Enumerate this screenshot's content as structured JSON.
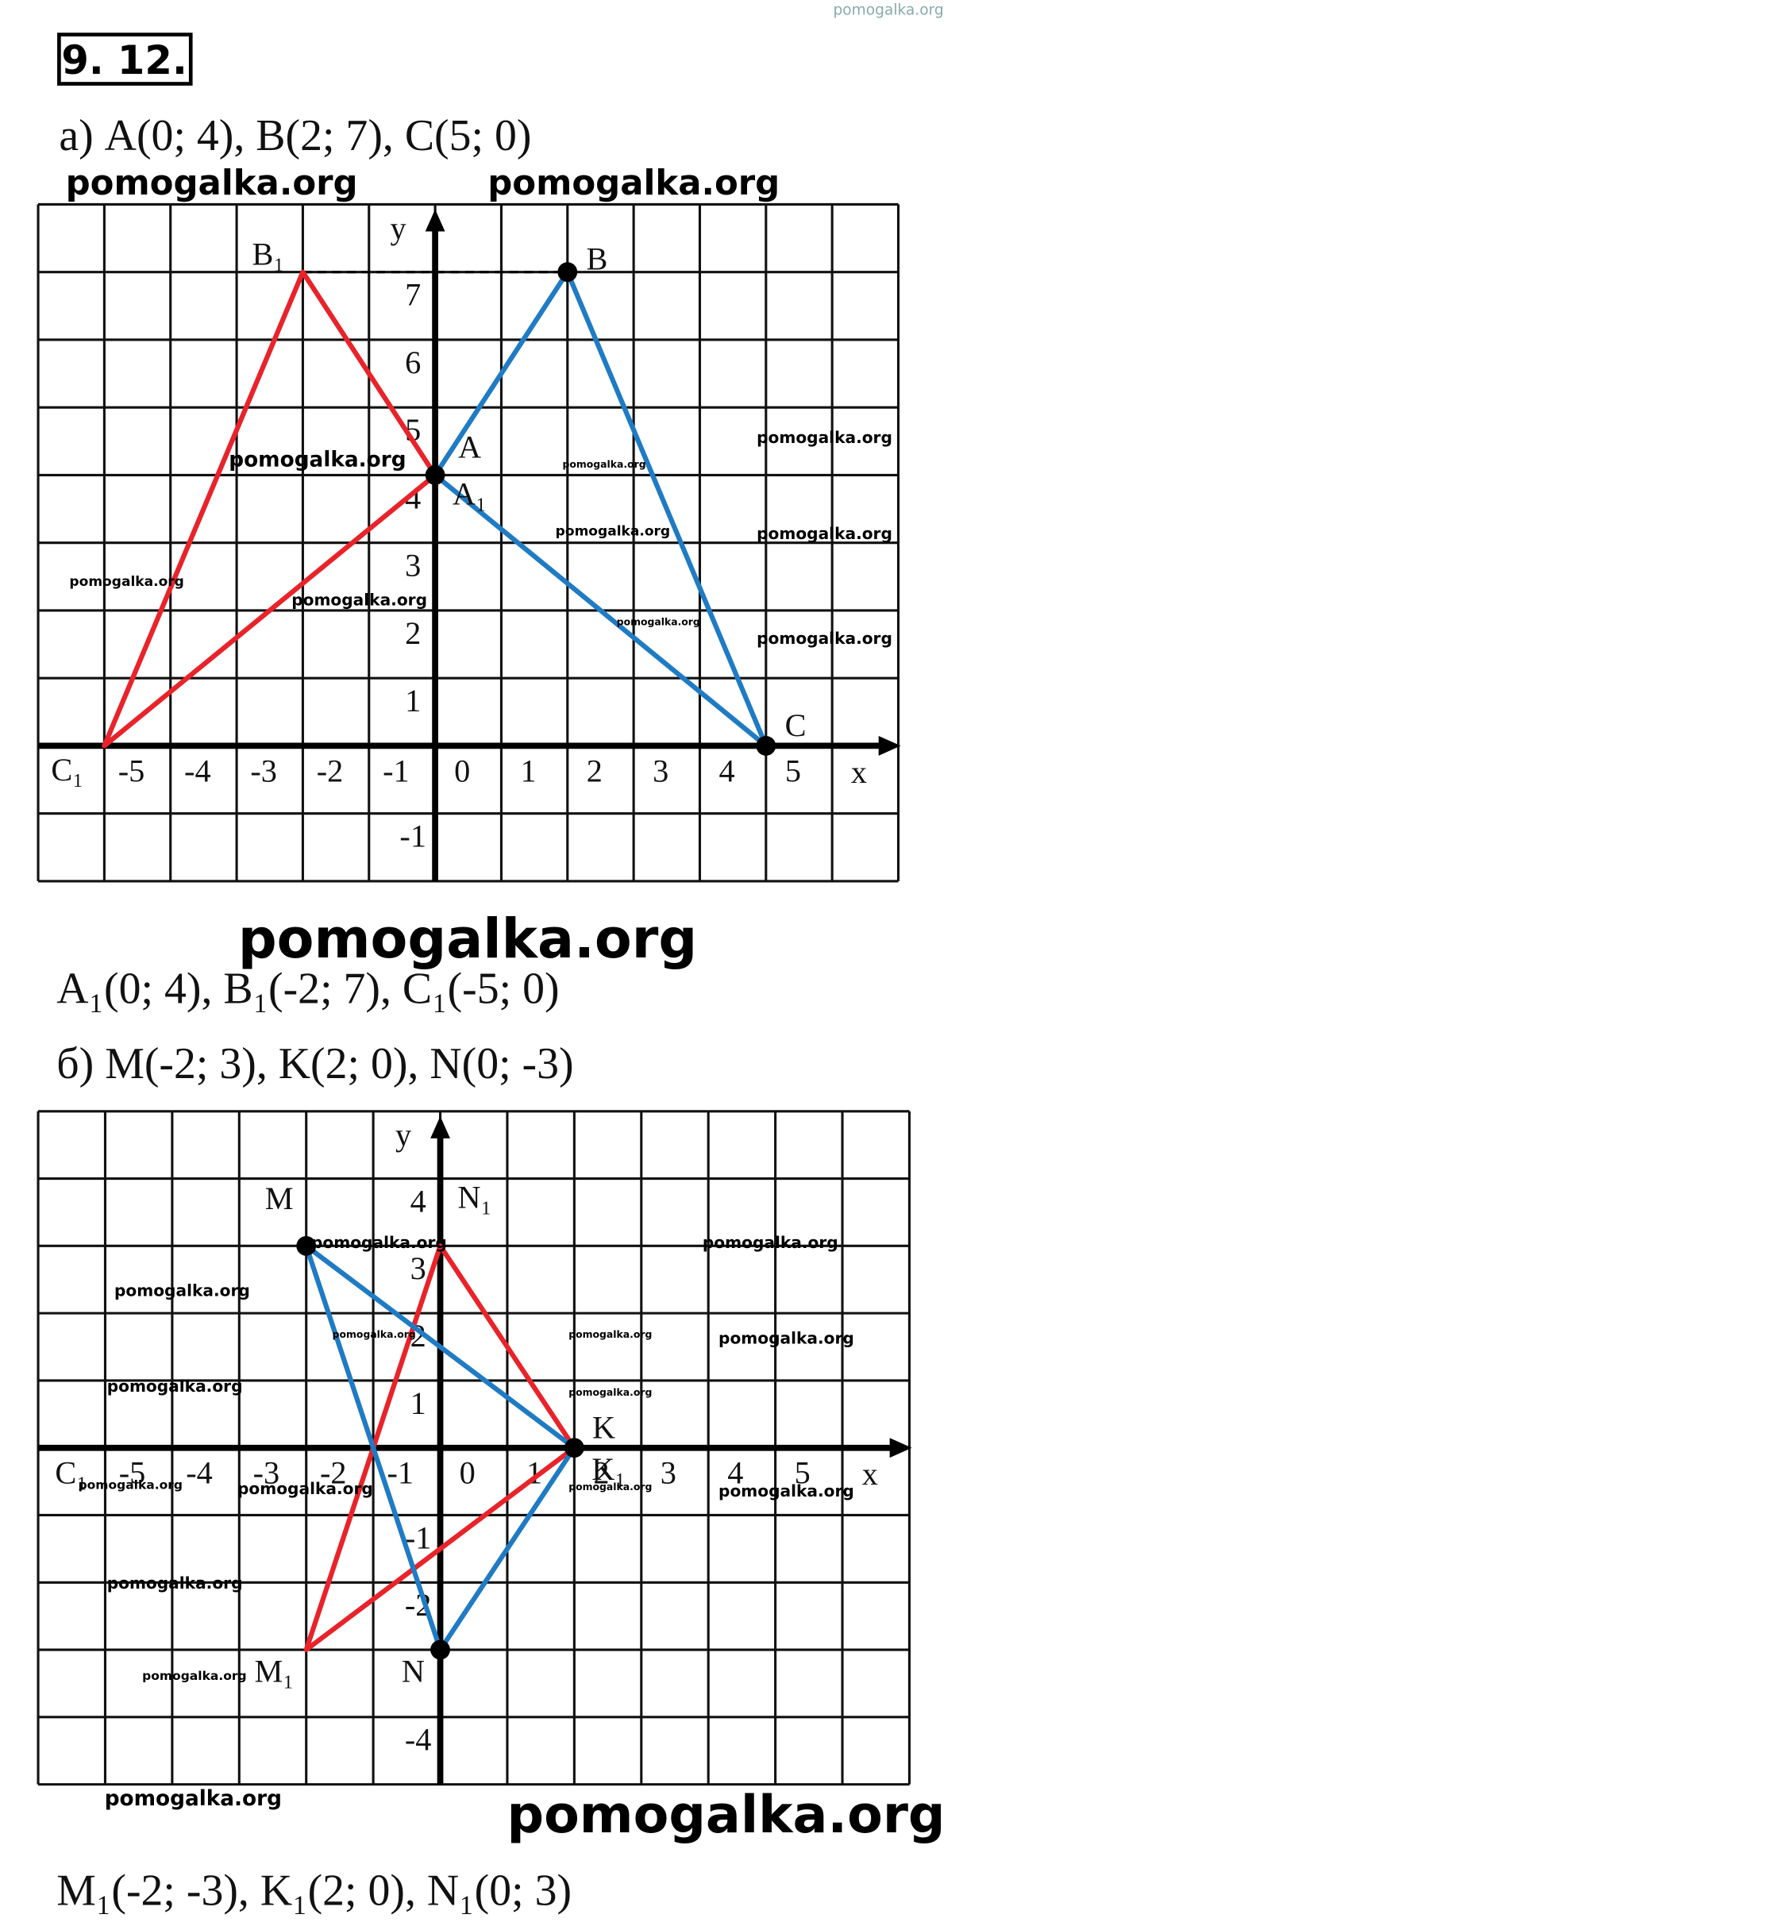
{
  "problem": "9. 12.",
  "parts": [
    {
      "statement": "а) A(0; 4), B(2; 7), C(5; 0)",
      "answer": "A₁(0; 4), B₁(-2; 7), C₁(-5; 0)",
      "figure": {
        "xlim": [
          -6,
          7
        ],
        "ylim": [
          -2,
          8
        ],
        "xticks": [
          -5,
          -4,
          -3,
          -2,
          -1,
          0,
          1,
          2,
          3,
          4,
          5
        ],
        "yticks": [
          -1,
          1,
          2,
          3,
          4,
          5,
          6,
          7
        ],
        "x_label": "x",
        "y_label": "y",
        "triangles": [
          {
            "color": "#1f7bc4",
            "dots": true,
            "points": [
              {
                "label": "A",
                "x": 0,
                "y": 4
              },
              {
                "label": "B",
                "x": 2,
                "y": 7
              },
              {
                "label": "C",
                "x": 5,
                "y": 0
              }
            ]
          },
          {
            "color": "#e8232a",
            "dots": false,
            "points": [
              {
                "label": "A₁",
                "x": 0,
                "y": 4
              },
              {
                "label": "B₁",
                "x": -2,
                "y": 7
              },
              {
                "label": "C₁",
                "x": -5,
                "y": 0
              }
            ]
          }
        ]
      }
    },
    {
      "statement": "б) M(-2; 3), K(2; 0), N(0; -3)",
      "answer": "M₁(-2; -3), K₁(2; 0), N₁(0; 3)",
      "figure": {
        "xlim": [
          -6,
          7
        ],
        "ylim": [
          -5,
          5
        ],
        "xticks": [
          -5,
          -4,
          -3,
          -2,
          -1,
          0,
          1,
          2,
          3,
          4,
          5
        ],
        "yticks": [
          -4,
          -2,
          -1,
          1,
          2,
          3,
          4
        ],
        "x_label": "x",
        "y_label": "y",
        "extra_label": "C₁",
        "triangles": [
          {
            "color": "#1f7bc4",
            "dots": true,
            "points": [
              {
                "label": "M",
                "x": -2,
                "y": 3
              },
              {
                "label": "K",
                "x": 2,
                "y": 0
              },
              {
                "label": "N",
                "x": 0,
                "y": -3
              }
            ]
          },
          {
            "color": "#e8232a",
            "dots": false,
            "points": [
              {
                "label": "M₁",
                "x": -2,
                "y": -3
              },
              {
                "label": "K₁",
                "x": 2,
                "y": 0
              },
              {
                "label": "N₁",
                "x": 0,
                "y": 3
              }
            ]
          }
        ]
      }
    }
  ],
  "watermarks": [
    "pomogalka.org",
    "pomogalka.org",
    "pomogalka.org",
    "pomogalka.org",
    "pomogalka.org",
    "pomogalka.org",
    "pomogalka.org",
    "pomogalka.org",
    "pomogalka.org",
    "pomogalka.org",
    "pomogalka.org",
    "pomogalka.org",
    "pomogalka.org",
    "pomogalka.org",
    "pomogalka.org",
    "pomogalka.org",
    "pomogalka.org",
    "pomogalka.org",
    "pomogalka.org",
    "pomogalka.org",
    "pomogalka.org",
    "pomogalka.org",
    "pomogalka.org",
    "pomogalka.org",
    "pomogalka.org",
    "pomogalka.org",
    "pomogalka.org",
    "pomogalka.org",
    "pomogalka.org"
  ]
}
